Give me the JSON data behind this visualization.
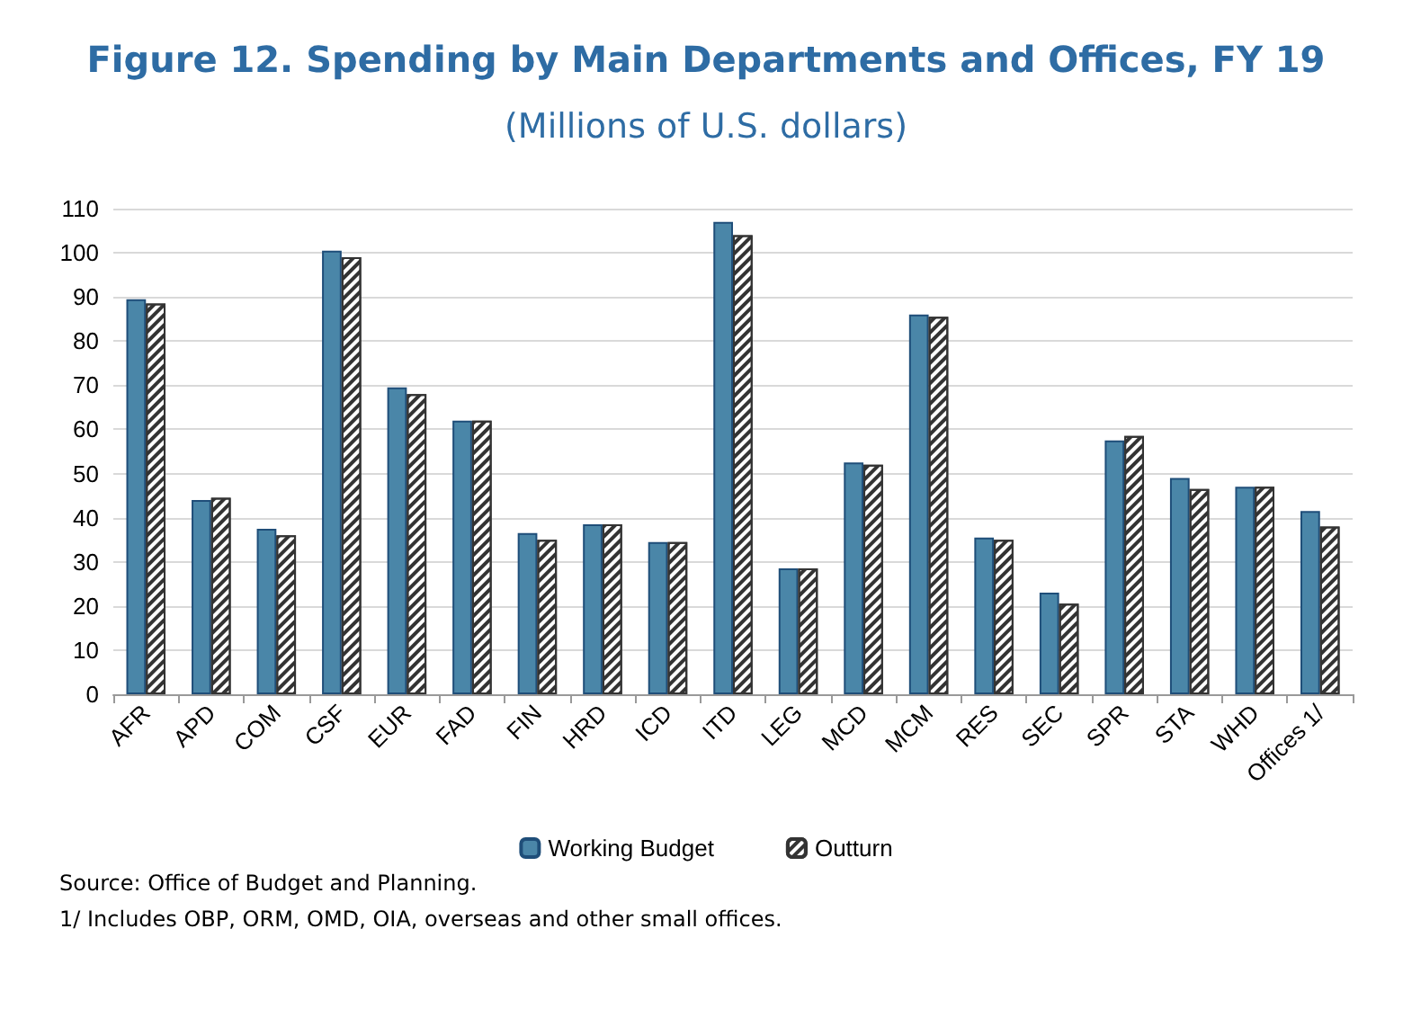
{
  "chart_data": {
    "type": "bar",
    "title": "Figure 12. Spending by Main Departments and Offices, FY 19",
    "subtitle": "(Millions of U.S. dollars)",
    "categories": [
      "AFR",
      "APD",
      "COM",
      "CSF",
      "EUR",
      "FAD",
      "FIN",
      "HRD",
      "ICD",
      "ITD",
      "LEG",
      "MCD",
      "MCM",
      "RES",
      "SEC",
      "SPR",
      "STA",
      "WHD",
      "Offices 1/"
    ],
    "series": [
      {
        "name": "Working Budget",
        "color": "#4a86a8",
        "values": [
          89.5,
          44,
          37.5,
          100.5,
          69.5,
          62,
          36.5,
          38.5,
          34.5,
          107,
          28.5,
          52.5,
          86,
          35.5,
          23,
          57.5,
          49,
          47,
          41.5
        ]
      },
      {
        "name": "Outturn",
        "color": "#ffffff",
        "values": [
          88.5,
          44.5,
          36,
          99,
          68,
          62,
          35,
          38.5,
          34.5,
          104,
          28.5,
          52,
          85.5,
          35,
          20.5,
          58.5,
          46.5,
          47,
          38
        ]
      }
    ],
    "ylim": [
      0,
      110
    ],
    "yticks": [
      0,
      10,
      20,
      30,
      40,
      50,
      60,
      70,
      80,
      90,
      100,
      110
    ],
    "grid": "y",
    "legend": "bottom",
    "annotations": [
      "Source: Office of Budget and Planning.",
      "1/ Includes OBP, ORM, OMD, OIA, overseas and other small offices."
    ]
  }
}
